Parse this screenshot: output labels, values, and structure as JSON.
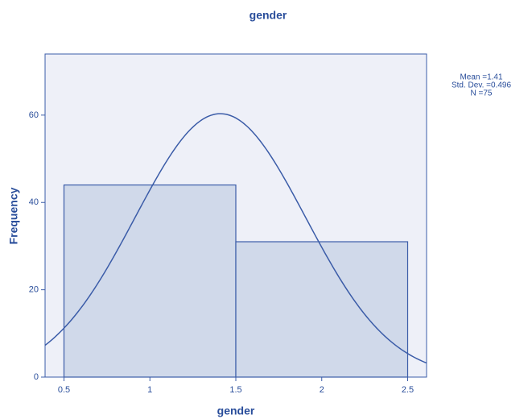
{
  "chart_data": {
    "type": "histogram",
    "title": "gender",
    "x_label": "gender",
    "y_label": "Frequency",
    "bins": [
      0.5,
      1.5,
      2.5
    ],
    "values": [
      44,
      31
    ],
    "color": "#d0d9ea",
    "xlim": [
      0.39,
      2.61
    ],
    "ylim": [
      0,
      74
    ],
    "xticks": [
      0.5,
      1,
      1.5,
      2,
      2.5
    ],
    "yticks": [
      0,
      20,
      40,
      60
    ],
    "stats": [
      {
        "value": 1.41,
        "label": "Mean =1.41"
      },
      {
        "value": 0.496,
        "label": "Std. Dev. =0.496"
      },
      {
        "value": 75,
        "label": "N =75"
      }
    ],
    "normal_curve": true
  }
}
